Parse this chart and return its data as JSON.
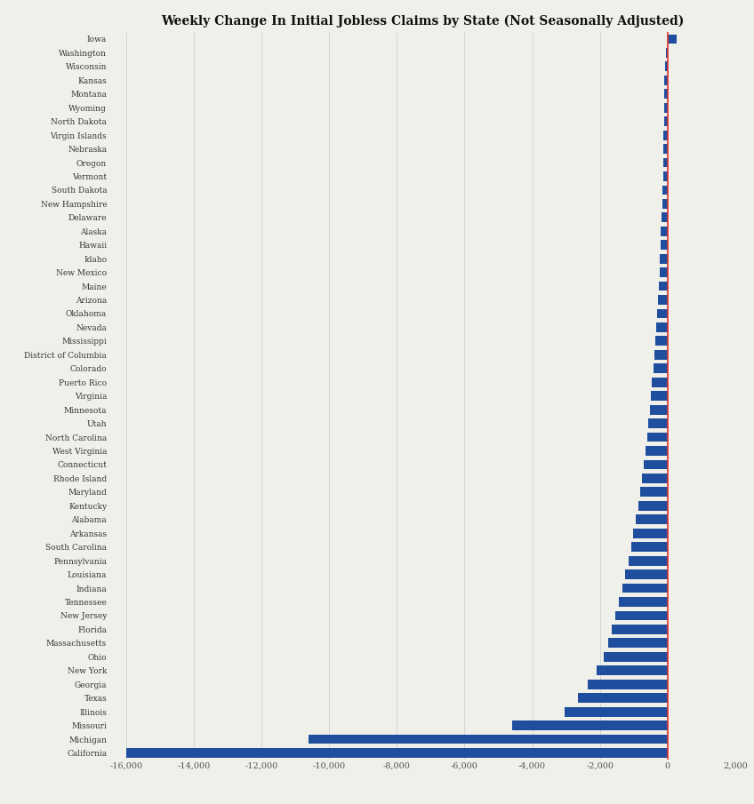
{
  "title": "Weekly Change In Initial Jobless Claims by State (Not Seasonally Adjusted)",
  "states": [
    "Iowa",
    "Washington",
    "Wisconsin",
    "Kansas",
    "Montana",
    "Wyoming",
    "North Dakota",
    "Virgin Islands",
    "Nebraska",
    "Oregon",
    "Vermont",
    "South Dakota",
    "New Hampshire",
    "Delaware",
    "Alaska",
    "Hawaii",
    "Idaho",
    "New Mexico",
    "Maine",
    "Arizona",
    "Oklahoma",
    "Nevada",
    "Mississippi",
    "District of Columbia",
    "Colorado",
    "Puerto Rico",
    "Virginia",
    "Minnesota",
    "Utah",
    "North Carolina",
    "West Virginia",
    "Connecticut",
    "Rhode Island",
    "Maryland",
    "Kentucky",
    "Alabama",
    "Arkansas",
    "South Carolina",
    "Pennsylvania",
    "Louisiana",
    "Indiana",
    "Tennessee",
    "New Jersey",
    "Florida",
    "Massachusetts",
    "Ohio",
    "New York",
    "Georgia",
    "Texas",
    "Illinois",
    "Missouri",
    "Michigan",
    "California"
  ],
  "values": [
    280,
    -50,
    -80,
    -95,
    -100,
    -105,
    -110,
    -115,
    -120,
    -125,
    -135,
    -145,
    -160,
    -175,
    -190,
    -210,
    -220,
    -240,
    -260,
    -290,
    -310,
    -330,
    -360,
    -390,
    -420,
    -460,
    -490,
    -530,
    -570,
    -610,
    -650,
    -700,
    -750,
    -810,
    -870,
    -940,
    -1010,
    -1080,
    -1160,
    -1250,
    -1340,
    -1430,
    -1530,
    -1640,
    -1750,
    -1880,
    -2100,
    -2350,
    -2650,
    -3050,
    -4600,
    -10600,
    -16000
  ],
  "bar_color": "#1f4e9e",
  "zeroline_color": "#e03030",
  "background_color": "#f0f0eb",
  "title_fontsize": 10,
  "label_fontsize": 6.5,
  "tick_fontsize": 7,
  "xlim": [
    -16500,
    2000
  ],
  "xticks": [
    -16000,
    -14000,
    -12000,
    -10000,
    -8000,
    -6000,
    -4000,
    -2000,
    0,
    2000
  ],
  "xtick_labels": [
    "-16,000",
    "-14,000",
    "-12,000",
    "-10,000",
    "-8,000",
    "-6,000",
    "-4,000",
    "-2,000",
    "0",
    "2,000"
  ]
}
